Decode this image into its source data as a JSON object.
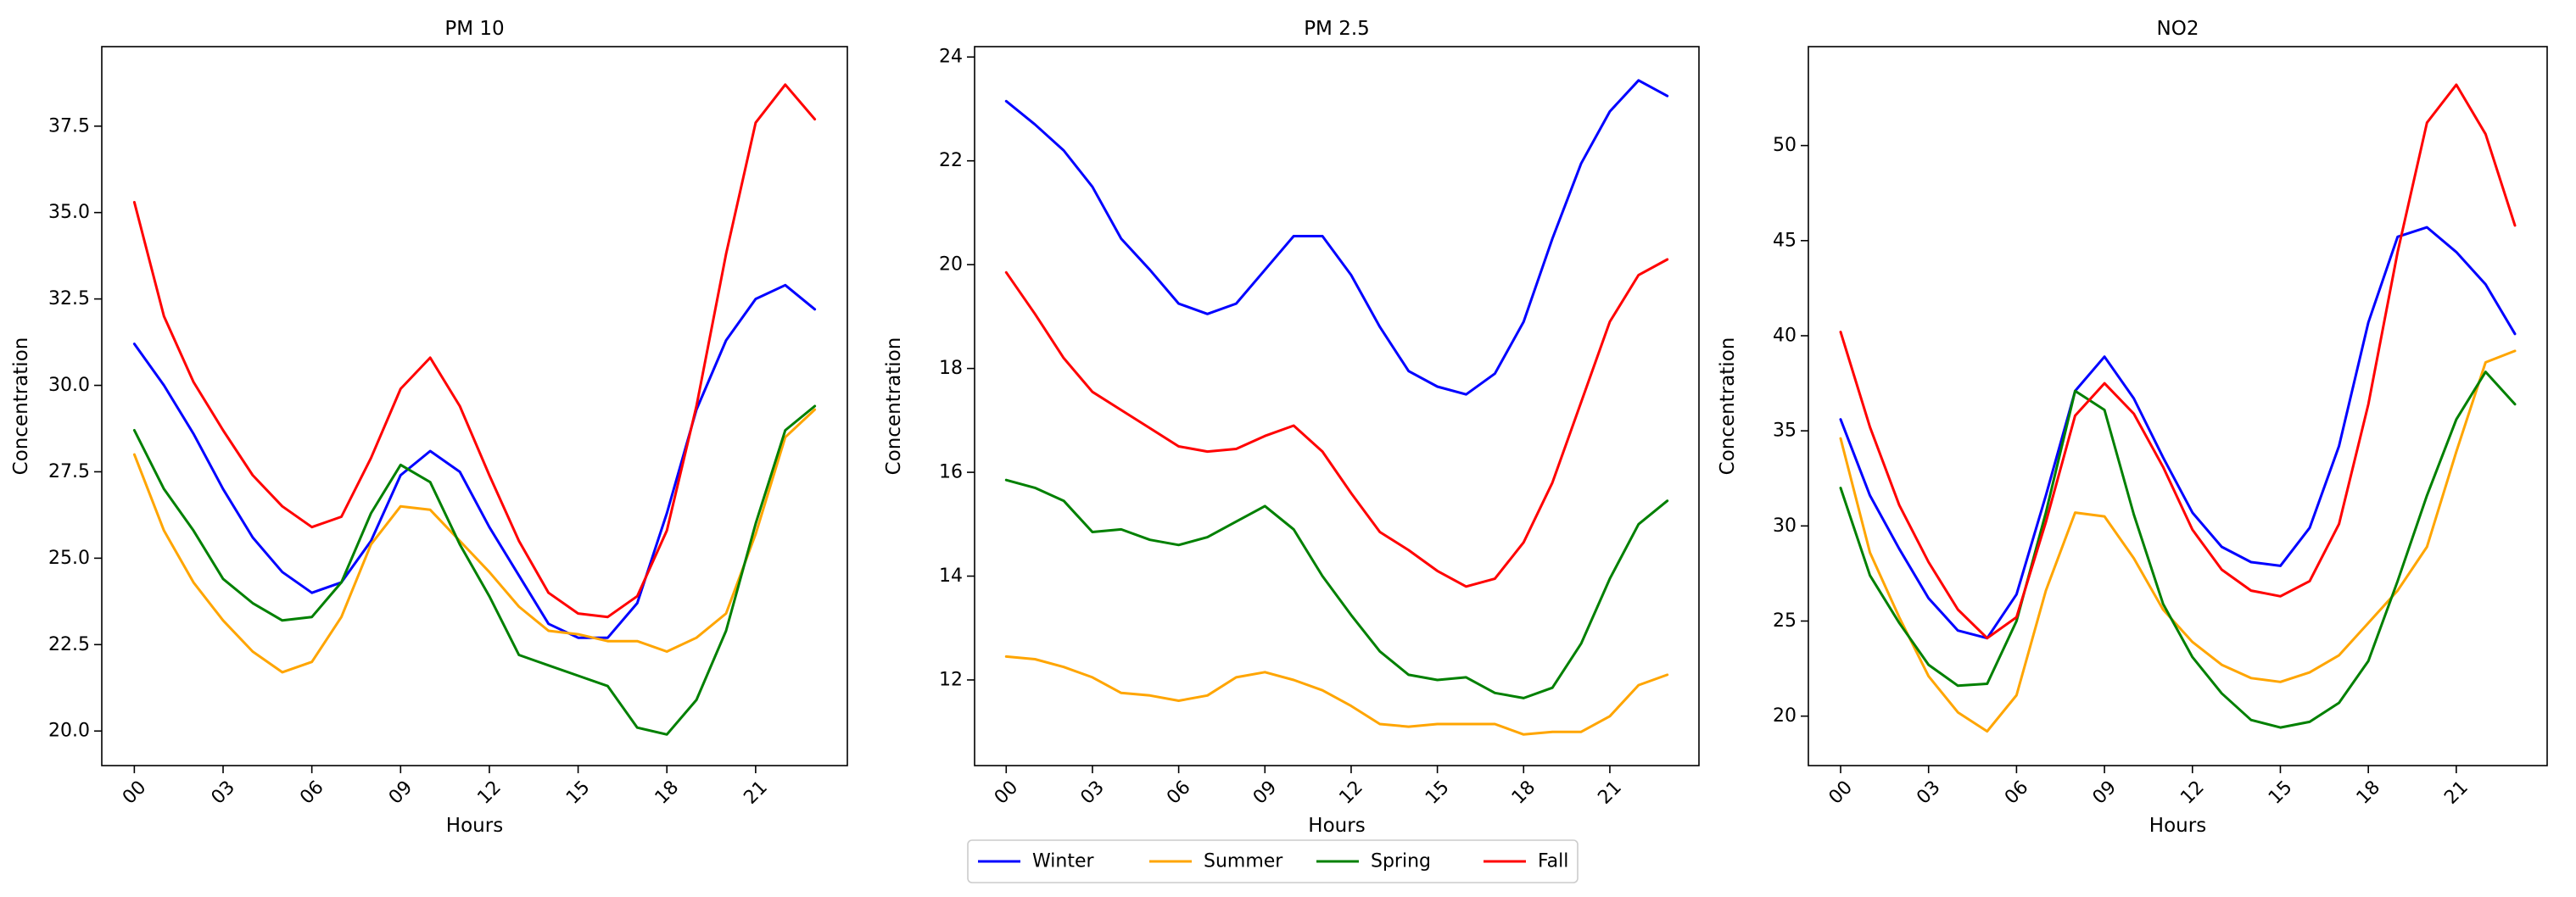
{
  "colors": {
    "Winter": "#0000ff",
    "Summer": "#ffa500",
    "Spring": "#008000",
    "Fall": "#ff0000",
    "axis": "#000000",
    "background": "#ffffff"
  },
  "legend": {
    "placement": "bottom-center",
    "entries": [
      "Winter",
      "Summer",
      "Spring",
      "Fall"
    ]
  },
  "chart_data": [
    {
      "type": "line",
      "title": "PM 10",
      "xlabel": "Hours",
      "ylabel": "Concentration",
      "x": [
        0,
        1,
        2,
        3,
        4,
        5,
        6,
        7,
        8,
        9,
        10,
        11,
        12,
        13,
        14,
        15,
        16,
        17,
        18,
        19,
        20,
        21,
        22,
        23
      ],
      "xticks": [
        0,
        3,
        6,
        9,
        12,
        15,
        18,
        21
      ],
      "xtick_labels": [
        "00",
        "03",
        "06",
        "09",
        "12",
        "15",
        "18",
        "21"
      ],
      "xlim": [
        -1.1,
        24.1
      ],
      "ylim": [
        19.0,
        39.8
      ],
      "yticks": [
        20.0,
        22.5,
        25.0,
        27.5,
        30.0,
        32.5,
        35.0,
        37.5
      ],
      "ytick_labels": [
        "20.0",
        "22.5",
        "25.0",
        "27.5",
        "30.0",
        "32.5",
        "35.0",
        "37.5"
      ],
      "series": [
        {
          "name": "Winter",
          "values": [
            31.2,
            30.0,
            28.6,
            27.0,
            25.6,
            24.6,
            24.0,
            24.3,
            25.5,
            27.4,
            28.1,
            27.5,
            25.9,
            24.5,
            23.1,
            22.7,
            22.7,
            23.7,
            26.3,
            29.3,
            31.3,
            32.5,
            32.9,
            32.2
          ]
        },
        {
          "name": "Summer",
          "values": [
            28.0,
            25.8,
            24.3,
            23.2,
            22.3,
            21.7,
            22.0,
            23.3,
            25.4,
            26.5,
            26.4,
            25.5,
            24.6,
            23.6,
            22.9,
            22.8,
            22.6,
            22.6,
            22.3,
            22.7,
            23.4,
            25.7,
            28.5,
            29.3
          ]
        },
        {
          "name": "Spring",
          "values": [
            28.7,
            27.0,
            25.8,
            24.4,
            23.7,
            23.2,
            23.3,
            24.3,
            26.3,
            27.7,
            27.2,
            25.4,
            23.9,
            22.2,
            21.9,
            21.6,
            21.3,
            20.1,
            19.9,
            20.9,
            22.9,
            26.0,
            28.7,
            29.4
          ]
        },
        {
          "name": "Fall",
          "values": [
            35.3,
            32.0,
            30.1,
            28.7,
            27.4,
            26.5,
            25.9,
            26.2,
            27.9,
            29.9,
            30.8,
            29.4,
            27.4,
            25.5,
            24.0,
            23.4,
            23.3,
            23.9,
            25.8,
            29.4,
            33.8,
            37.6,
            38.7,
            37.7
          ]
        }
      ]
    },
    {
      "type": "line",
      "title": "PM 2.5",
      "xlabel": "Hours",
      "ylabel": "Concentration",
      "x": [
        0,
        1,
        2,
        3,
        4,
        5,
        6,
        7,
        8,
        9,
        10,
        11,
        12,
        13,
        14,
        15,
        16,
        17,
        18,
        19,
        20,
        21,
        22,
        23
      ],
      "xticks": [
        0,
        3,
        6,
        9,
        12,
        15,
        18,
        21
      ],
      "xtick_labels": [
        "00",
        "03",
        "06",
        "09",
        "12",
        "15",
        "18",
        "21"
      ],
      "xlim": [
        -1.1,
        24.1
      ],
      "ylim": [
        10.35,
        24.2
      ],
      "yticks": [
        12,
        14,
        16,
        18,
        20,
        22,
        24
      ],
      "ytick_labels": [
        "12",
        "14",
        "16",
        "18",
        "20",
        "22",
        "24"
      ],
      "series": [
        {
          "name": "Winter",
          "values": [
            23.15,
            22.7,
            22.2,
            21.5,
            20.5,
            19.9,
            19.25,
            19.05,
            19.25,
            19.9,
            20.55,
            20.55,
            19.8,
            18.8,
            17.95,
            17.65,
            17.5,
            17.9,
            18.9,
            20.5,
            21.95,
            22.95,
            23.55,
            23.25
          ]
        },
        {
          "name": "Summer",
          "values": [
            12.45,
            12.4,
            12.25,
            12.05,
            11.75,
            11.7,
            11.6,
            11.7,
            12.05,
            12.15,
            12.0,
            11.8,
            11.5,
            11.15,
            11.1,
            11.15,
            11.15,
            11.15,
            10.95,
            11.0,
            11.0,
            11.3,
            11.9,
            12.1
          ]
        },
        {
          "name": "Spring",
          "values": [
            15.85,
            15.7,
            15.45,
            14.85,
            14.9,
            14.7,
            14.6,
            14.75,
            15.05,
            15.35,
            14.9,
            14.0,
            13.25,
            12.55,
            12.1,
            12.0,
            12.05,
            11.75,
            11.65,
            11.85,
            12.7,
            13.95,
            15.0,
            15.45
          ]
        },
        {
          "name": "Fall",
          "values": [
            19.85,
            19.05,
            18.2,
            17.55,
            17.2,
            16.85,
            16.5,
            16.4,
            16.45,
            16.7,
            16.9,
            16.4,
            15.6,
            14.85,
            14.5,
            14.1,
            13.8,
            13.95,
            14.65,
            15.8,
            17.35,
            18.9,
            19.8,
            20.1
          ]
        }
      ]
    },
    {
      "type": "line",
      "title": "NO2",
      "xlabel": "Hours",
      "ylabel": "Concentration",
      "x": [
        0,
        1,
        2,
        3,
        4,
        5,
        6,
        7,
        8,
        9,
        10,
        11,
        12,
        13,
        14,
        15,
        16,
        17,
        18,
        19,
        20,
        21,
        22,
        23
      ],
      "xticks": [
        0,
        3,
        6,
        9,
        12,
        15,
        18,
        21
      ],
      "xtick_labels": [
        "00",
        "03",
        "06",
        "09",
        "12",
        "15",
        "18",
        "21"
      ],
      "xlim": [
        -1.1,
        24.1
      ],
      "ylim": [
        17.4,
        55.2
      ],
      "yticks": [
        20,
        25,
        30,
        35,
        40,
        45,
        50
      ],
      "ytick_labels": [
        "20",
        "25",
        "30",
        "35",
        "40",
        "45",
        "50"
      ],
      "series": [
        {
          "name": "Winter",
          "values": [
            35.6,
            31.6,
            28.8,
            26.2,
            24.5,
            24.1,
            26.4,
            31.6,
            37.1,
            38.9,
            36.7,
            33.6,
            30.7,
            28.9,
            28.1,
            27.9,
            29.9,
            34.2,
            40.7,
            45.2,
            45.7,
            44.4,
            42.7,
            40.1
          ]
        },
        {
          "name": "Summer",
          "values": [
            34.6,
            28.6,
            25.2,
            22.1,
            20.2,
            19.2,
            21.1,
            26.6,
            30.7,
            30.5,
            28.3,
            25.6,
            23.9,
            22.7,
            22.0,
            21.8,
            22.3,
            23.2,
            24.9,
            26.6,
            28.9,
            33.9,
            38.6,
            39.2
          ]
        },
        {
          "name": "Spring",
          "values": [
            32.0,
            27.4,
            24.9,
            22.7,
            21.6,
            21.7,
            25.0,
            30.7,
            37.1,
            36.1,
            30.6,
            25.9,
            23.1,
            21.2,
            19.8,
            19.4,
            19.7,
            20.7,
            22.9,
            27.1,
            31.6,
            35.6,
            38.1,
            36.4
          ]
        },
        {
          "name": "Fall",
          "values": [
            40.2,
            35.2,
            31.1,
            28.1,
            25.6,
            24.1,
            25.2,
            30.2,
            35.8,
            37.5,
            35.9,
            33.1,
            29.8,
            27.7,
            26.6,
            26.3,
            27.1,
            30.1,
            36.4,
            44.4,
            51.2,
            53.2,
            50.6,
            45.8
          ]
        }
      ]
    }
  ]
}
